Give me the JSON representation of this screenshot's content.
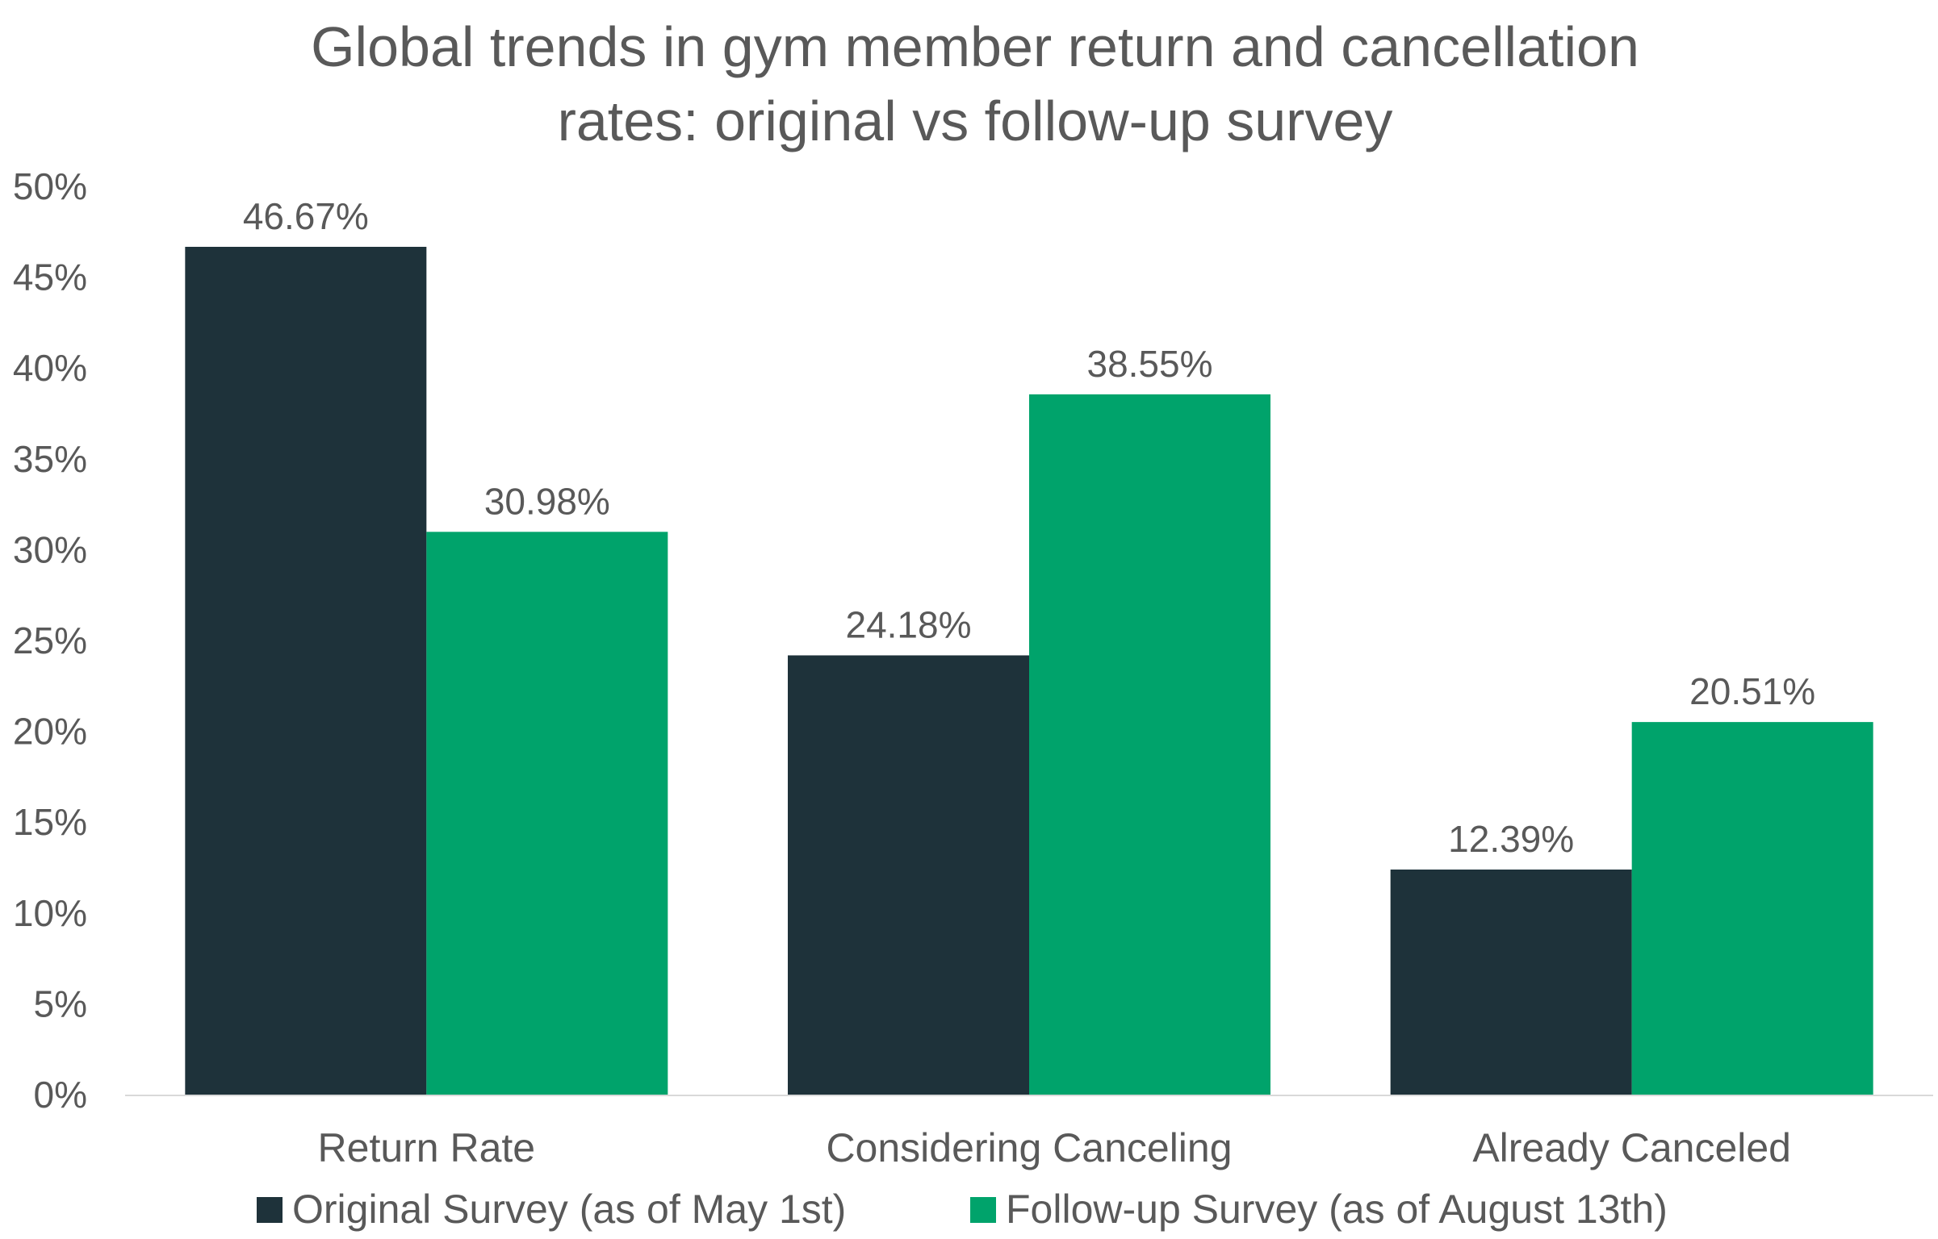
{
  "chart_data": {
    "type": "bar",
    "title": "Global trends in gym member return and cancellation rates: original vs follow-up survey",
    "title_lines": [
      "Global trends in gym member return and cancellation",
      "rates: original vs follow-up survey"
    ],
    "categories": [
      "Return Rate",
      "Considering Canceling",
      "Already Canceled"
    ],
    "series": [
      {
        "name": "Original Survey (as of May 1st)",
        "color": "#1e323a",
        "values": [
          46.67,
          24.18,
          12.39
        ],
        "labels": [
          "46.67%",
          "24.18%",
          "12.39%"
        ]
      },
      {
        "name": "Follow-up Survey (as of August 13th)",
        "color": "#00a36b",
        "values": [
          30.98,
          38.55,
          20.51
        ],
        "labels": [
          "30.98%",
          "38.55%",
          "20.51%"
        ]
      }
    ],
    "xlabel": "",
    "ylabel": "",
    "ylim": [
      0,
      50
    ],
    "yticks": [
      0,
      5,
      10,
      15,
      20,
      25,
      30,
      35,
      40,
      45,
      50
    ],
    "ytick_labels": [
      "0%",
      "5%",
      "10%",
      "15%",
      "20%",
      "25%",
      "30%",
      "35%",
      "40%",
      "45%",
      "50%"
    ],
    "grid": false,
    "legend_position": "bottom",
    "axis_color": "#d9d9d9"
  }
}
